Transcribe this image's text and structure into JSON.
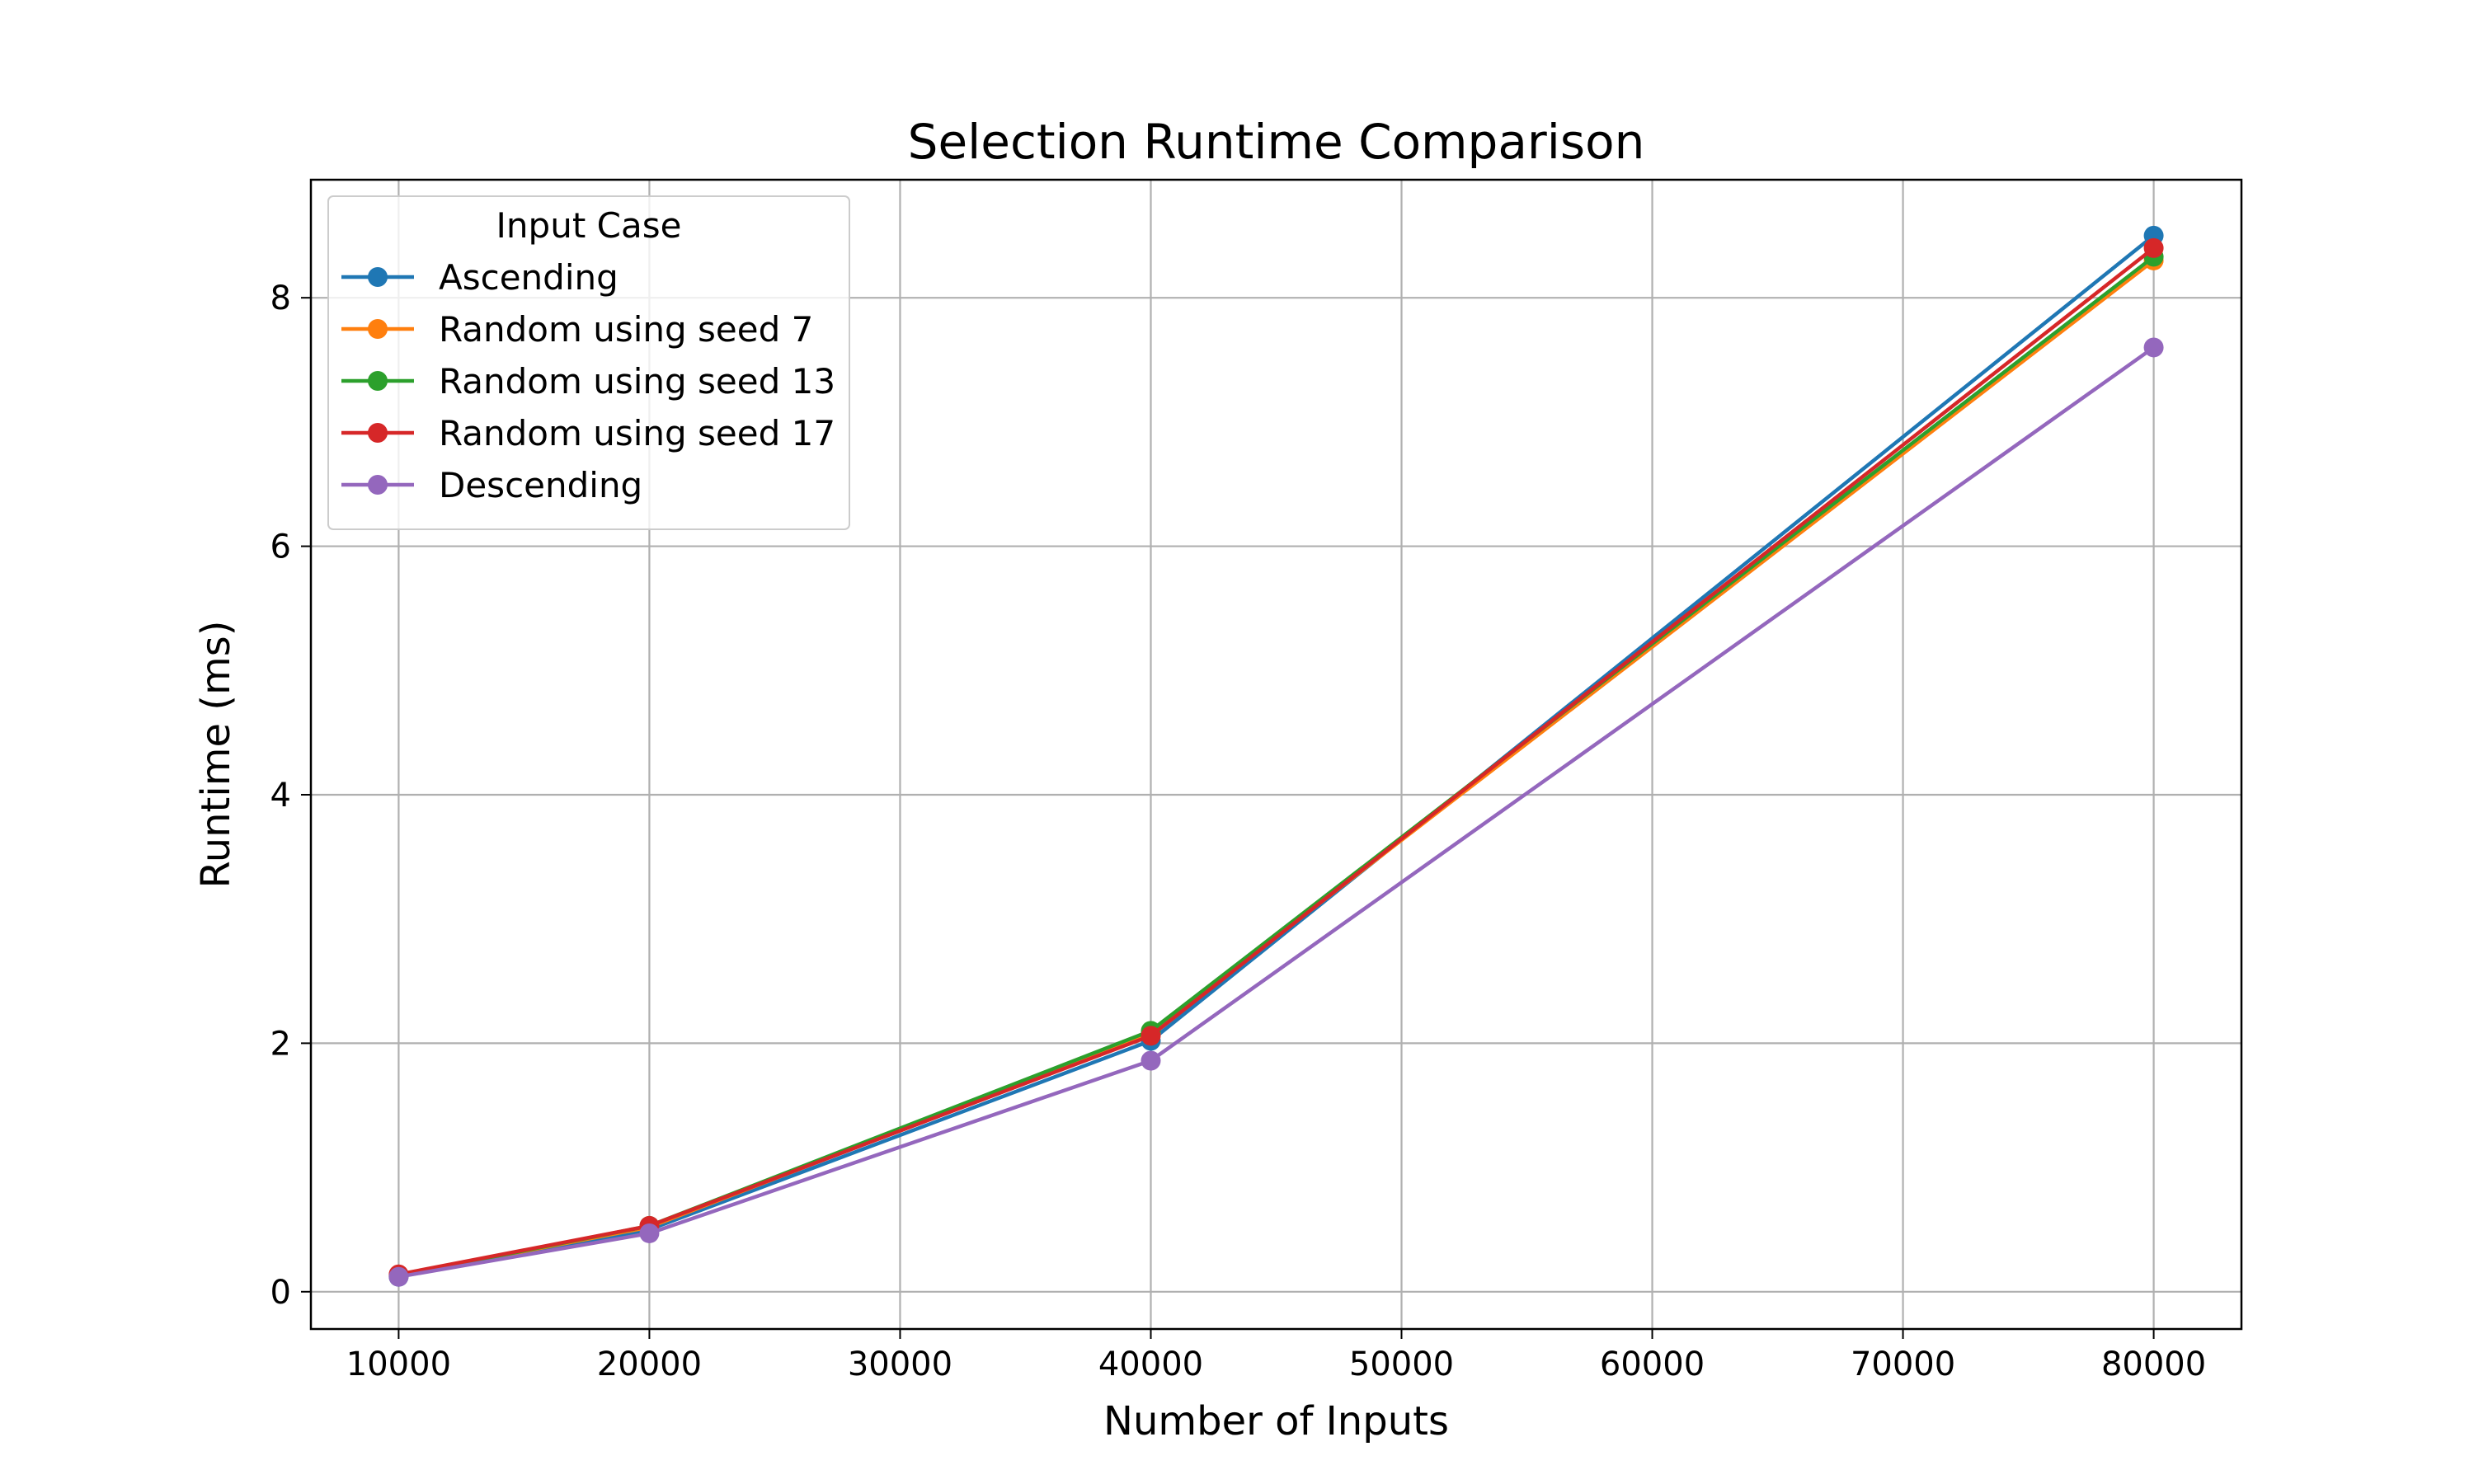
{
  "chart_data": {
    "type": "line",
    "title": "Selection Runtime Comparison",
    "xlabel": "Number of Inputs",
    "ylabel": "Runtime (ms)",
    "x": [
      10000,
      20000,
      40000,
      80000
    ],
    "xlim": [
      6500,
      83500
    ],
    "ylim": [
      -0.3,
      8.95
    ],
    "xticks": [
      10000,
      20000,
      30000,
      40000,
      50000,
      60000,
      70000,
      80000
    ],
    "xtick_labels": [
      "10000",
      "20000",
      "30000",
      "40000",
      "50000",
      "60000",
      "70000",
      "80000"
    ],
    "yticks": [
      0,
      2,
      4,
      6,
      8
    ],
    "ytick_labels": [
      "0",
      "2",
      "4",
      "6",
      "8"
    ],
    "grid": true,
    "marker": "circle",
    "legend": {
      "title": "Input Case",
      "position": "top-left"
    },
    "series": [
      {
        "name": "Ascending",
        "color": "#1f77b4",
        "values": [
          0.12,
          0.5,
          2.02,
          8.5
        ]
      },
      {
        "name": "Random using seed 7",
        "color": "#ff7f0e",
        "values": [
          0.13,
          0.52,
          2.08,
          8.3
        ]
      },
      {
        "name": "Random using seed 13",
        "color": "#2ca02c",
        "values": [
          0.13,
          0.53,
          2.1,
          8.33
        ]
      },
      {
        "name": "Random using seed 17",
        "color": "#d62728",
        "values": [
          0.14,
          0.53,
          2.06,
          8.4
        ]
      },
      {
        "name": "Descending",
        "color": "#9467bd",
        "values": [
          0.12,
          0.47,
          1.86,
          7.6
        ]
      }
    ]
  }
}
